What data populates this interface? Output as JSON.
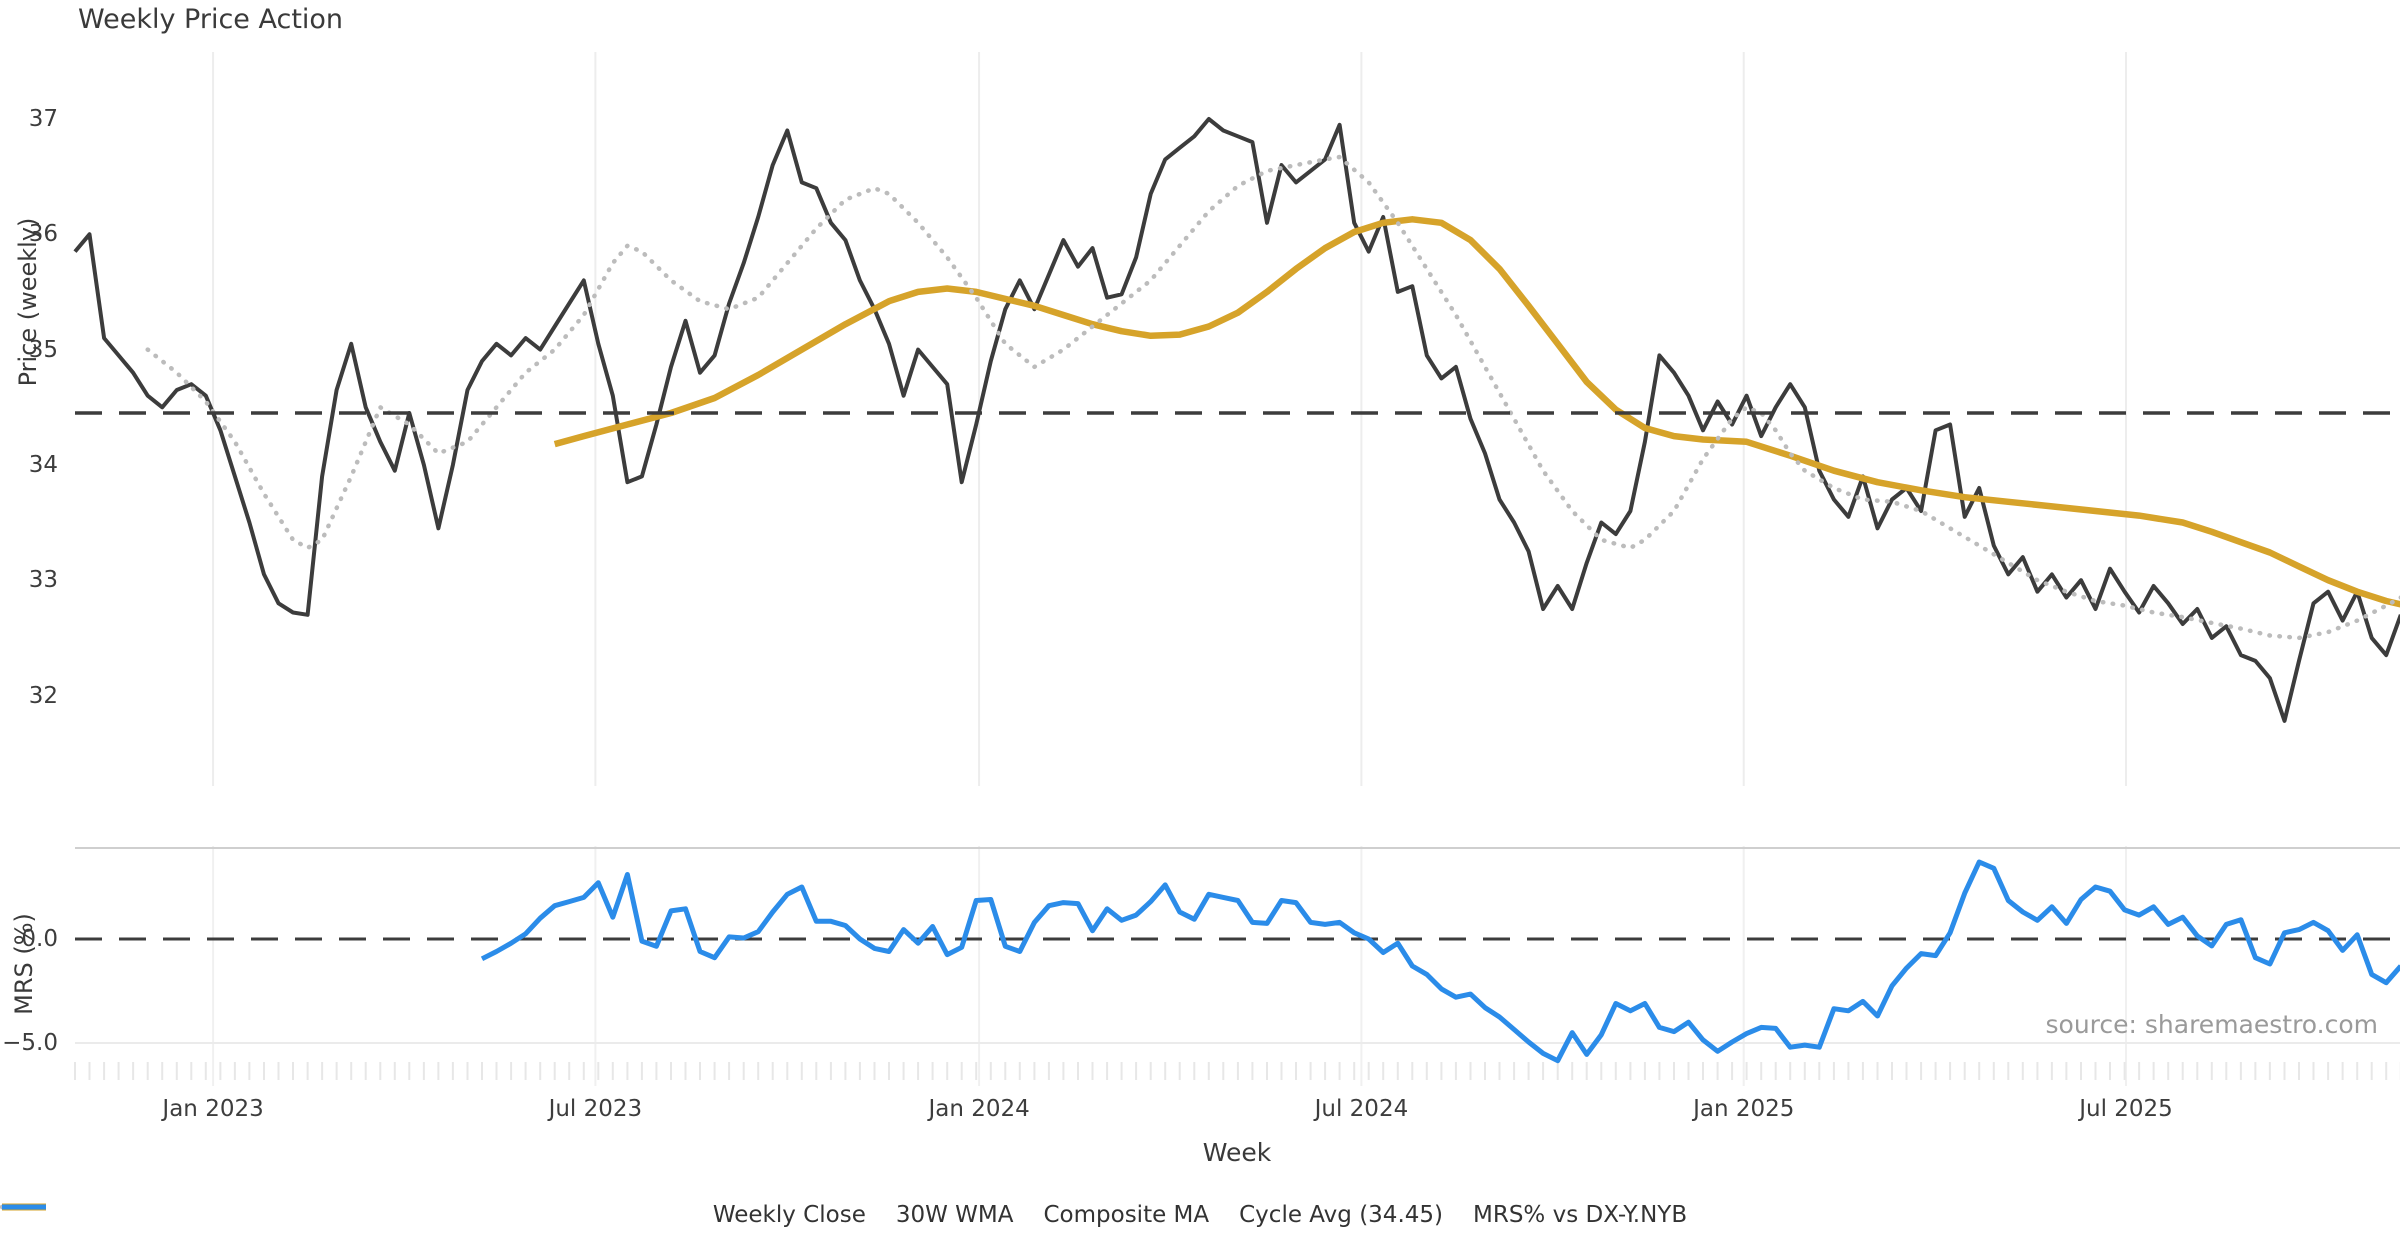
{
  "title": "Weekly Price Action",
  "source": "source: sharemaestro.com",
  "chart_data": {
    "type": "line",
    "xlabel": "Week",
    "x_ticks": [
      {
        "week": 9.5,
        "label": "Jan 2023"
      },
      {
        "week": 35.8,
        "label": "Jul 2023"
      },
      {
        "week": 62.2,
        "label": "Jan 2024"
      },
      {
        "week": 88.5,
        "label": "Jul 2024"
      },
      {
        "week": 114.8,
        "label": "Jan 2025"
      },
      {
        "week": 141.1,
        "label": "Jul 2025"
      }
    ],
    "panels": [
      {
        "name": "price",
        "ylabel": "Price (weekly)",
        "ylim": [
          31.5,
          37.35
        ],
        "yticks": [
          {
            "v": 37,
            "label": "37"
          },
          {
            "v": 36,
            "label": "36"
          },
          {
            "v": 35,
            "label": "35"
          },
          {
            "v": 34,
            "label": "34"
          },
          {
            "v": 33,
            "label": "33"
          },
          {
            "v": 32,
            "label": "32"
          }
        ],
        "cycle_avg": 34.45,
        "series": [
          {
            "name": "Weekly Close",
            "color": "#3c3c3c",
            "style": "solid",
            "width": 4,
            "start_week": 0,
            "values": [
              35.85,
              36.0,
              35.1,
              34.95,
              34.8,
              34.6,
              34.5,
              34.65,
              34.7,
              34.6,
              34.3,
              33.9,
              33.5,
              33.05,
              32.8,
              32.72,
              32.7,
              33.9,
              34.65,
              35.05,
              34.5,
              34.2,
              33.95,
              34.45,
              34.0,
              33.45,
              34.0,
              34.65,
              34.9,
              35.05,
              34.95,
              35.1,
              35.0,
              35.2,
              35.4,
              35.6,
              35.05,
              34.6,
              33.85,
              33.9,
              34.35,
              34.85,
              35.25,
              34.8,
              34.95,
              35.4,
              35.75,
              36.15,
              36.6,
              36.9,
              36.45,
              36.4,
              36.1,
              35.95,
              35.6,
              35.35,
              35.05,
              34.6,
              35.0,
              34.85,
              34.7,
              33.85,
              34.35,
              34.9,
              35.35,
              35.6,
              35.35,
              35.65,
              35.95,
              35.72,
              35.88,
              35.45,
              35.48,
              35.8,
              36.35,
              36.65,
              36.75,
              36.85,
              37.0,
              36.9,
              36.85,
              36.8,
              36.1,
              36.6,
              36.45,
              36.55,
              36.65,
              36.95,
              36.1,
              35.85,
              36.15,
              35.5,
              35.55,
              34.95,
              34.75,
              34.85,
              34.4,
              34.1,
              33.7,
              33.5,
              33.25,
              32.75,
              32.95,
              32.75,
              33.15,
              33.5,
              33.4,
              33.6,
              34.2,
              34.95,
              34.8,
              34.6,
              34.3,
              34.55,
              34.35,
              34.6,
              34.25,
              34.5,
              34.7,
              34.5,
              33.95,
              33.7,
              33.55,
              33.9,
              33.45,
              33.7,
              33.8,
              33.6,
              34.3,
              34.35,
              33.55,
              33.8,
              33.3,
              33.05,
              33.2,
              32.9,
              33.05,
              32.85,
              33.0,
              32.75,
              33.1,
              32.9,
              32.72,
              32.95,
              32.8,
              32.62,
              32.75,
              32.5,
              32.6,
              32.35,
              32.3,
              32.15,
              31.78,
              32.3,
              32.8,
              32.9,
              32.65,
              32.9,
              32.5,
              32.35,
              32.7
            ]
          },
          {
            "name": "30W WMA",
            "color": "#d6a32a",
            "style": "solid",
            "width": 6.5,
            "points": [
              [
                33,
                34.18
              ],
              [
                35,
                34.25
              ],
              [
                38,
                34.35
              ],
              [
                41,
                34.45
              ],
              [
                44,
                34.58
              ],
              [
                47,
                34.78
              ],
              [
                50,
                35.0
              ],
              [
                53,
                35.22
              ],
              [
                56,
                35.42
              ],
              [
                58,
                35.5
              ],
              [
                60,
                35.53
              ],
              [
                62,
                35.5
              ],
              [
                64,
                35.44
              ],
              [
                66,
                35.38
              ],
              [
                68,
                35.3
              ],
              [
                70,
                35.22
              ],
              [
                72,
                35.16
              ],
              [
                74,
                35.12
              ],
              [
                76,
                35.13
              ],
              [
                78,
                35.2
              ],
              [
                80,
                35.32
              ],
              [
                82,
                35.5
              ],
              [
                84,
                35.7
              ],
              [
                86,
                35.88
              ],
              [
                88,
                36.02
              ],
              [
                90,
                36.1
              ],
              [
                92,
                36.13
              ],
              [
                94,
                36.1
              ],
              [
                96,
                35.95
              ],
              [
                98,
                35.7
              ],
              [
                100,
                35.38
              ],
              [
                102,
                35.05
              ],
              [
                104,
                34.72
              ],
              [
                106,
                34.48
              ],
              [
                108,
                34.32
              ],
              [
                110,
                34.25
              ],
              [
                112,
                34.22
              ],
              [
                115,
                34.2
              ],
              [
                118,
                34.08
              ],
              [
                121,
                33.95
              ],
              [
                124,
                33.85
              ],
              [
                127,
                33.78
              ],
              [
                130,
                33.72
              ],
              [
                133,
                33.68
              ],
              [
                136,
                33.64
              ],
              [
                139,
                33.6
              ],
              [
                142,
                33.56
              ],
              [
                145,
                33.5
              ],
              [
                147,
                33.42
              ],
              [
                149,
                33.33
              ],
              [
                151,
                33.24
              ],
              [
                153,
                33.12
              ],
              [
                155,
                33.0
              ],
              [
                157,
                32.9
              ],
              [
                159,
                32.82
              ],
              [
                160,
                32.79
              ]
            ]
          },
          {
            "name": "Composite MA",
            "color": "#bcbcbc",
            "style": "dotted",
            "width": 4.5,
            "points": [
              [
                5,
                35.0
              ],
              [
                7,
                34.8
              ],
              [
                9,
                34.55
              ],
              [
                11,
                34.2
              ],
              [
                13,
                33.75
              ],
              [
                15,
                33.35
              ],
              [
                16,
                33.28
              ],
              [
                17,
                33.35
              ],
              [
                19,
                33.9
              ],
              [
                21,
                34.5
              ],
              [
                23,
                34.35
              ],
              [
                25,
                34.1
              ],
              [
                27,
                34.2
              ],
              [
                29,
                34.5
              ],
              [
                31,
                34.8
              ],
              [
                33,
                35.0
              ],
              [
                35,
                35.3
              ],
              [
                37,
                35.75
              ],
              [
                38,
                35.9
              ],
              [
                39,
                35.85
              ],
              [
                41,
                35.6
              ],
              [
                43,
                35.42
              ],
              [
                45,
                35.35
              ],
              [
                47,
                35.45
              ],
              [
                49,
                35.75
              ],
              [
                51,
                36.05
              ],
              [
                53,
                36.3
              ],
              [
                55,
                36.4
              ],
              [
                56,
                36.35
              ],
              [
                58,
                36.1
              ],
              [
                60,
                35.8
              ],
              [
                62,
                35.45
              ],
              [
                64,
                35.05
              ],
              [
                66,
                34.85
              ],
              [
                68,
                35.0
              ],
              [
                70,
                35.2
              ],
              [
                72,
                35.4
              ],
              [
                74,
                35.6
              ],
              [
                76,
                35.9
              ],
              [
                78,
                36.2
              ],
              [
                80,
                36.42
              ],
              [
                82,
                36.55
              ],
              [
                84,
                36.6
              ],
              [
                86,
                36.65
              ],
              [
                87,
                36.67
              ],
              [
                89,
                36.45
              ],
              [
                91,
                36.1
              ],
              [
                93,
                35.7
              ],
              [
                95,
                35.3
              ],
              [
                97,
                34.85
              ],
              [
                99,
                34.4
              ],
              [
                101,
                33.95
              ],
              [
                103,
                33.6
              ],
              [
                105,
                33.35
              ],
              [
                107,
                33.28
              ],
              [
                108,
                33.35
              ],
              [
                110,
                33.6
              ],
              [
                112,
                34.05
              ],
              [
                114,
                34.4
              ],
              [
                115,
                34.5
              ],
              [
                116,
                34.45
              ],
              [
                117,
                34.3
              ],
              [
                118,
                34.1
              ],
              [
                119,
                33.95
              ],
              [
                121,
                33.8
              ],
              [
                123,
                33.7
              ],
              [
                125,
                33.68
              ],
              [
                127,
                33.6
              ],
              [
                129,
                33.45
              ],
              [
                131,
                33.3
              ],
              [
                133,
                33.15
              ],
              [
                135,
                33.0
              ],
              [
                137,
                32.9
              ],
              [
                139,
                32.82
              ],
              [
                141,
                32.78
              ],
              [
                143,
                32.72
              ],
              [
                145,
                32.68
              ],
              [
                147,
                32.63
              ],
              [
                149,
                32.58
              ],
              [
                151,
                32.52
              ],
              [
                153,
                32.5
              ],
              [
                155,
                32.55
              ],
              [
                157,
                32.65
              ],
              [
                159,
                32.78
              ],
              [
                160,
                32.85
              ]
            ]
          },
          {
            "name": "Cycle Avg (34.45)",
            "color": "#3c3c3c",
            "style": "dashed",
            "width": 3.5,
            "value": 34.45
          }
        ]
      },
      {
        "name": "mrs",
        "ylabel": "MRS (%)",
        "ylim": [
          -6.8,
          4.3
        ],
        "yticks": [
          {
            "v": 0,
            "label": "0.0"
          },
          {
            "v": -5,
            "label": "−5.0"
          }
        ],
        "zero_line": 0,
        "series": [
          {
            "name": "MRS% vs DX-Y.NYB",
            "color": "#2b8ce9",
            "style": "solid",
            "width": 5,
            "start_week": 28,
            "values": [
              -0.95,
              -0.6,
              -0.2,
              0.25,
              1.0,
              1.6,
              1.8,
              2.0,
              2.7,
              1.05,
              3.1,
              -0.1,
              -0.35,
              1.35,
              1.45,
              -0.6,
              -0.9,
              0.1,
              0.05,
              0.35,
              1.3,
              2.15,
              2.5,
              0.85,
              0.85,
              0.65,
              0.0,
              -0.45,
              -0.6,
              0.45,
              -0.2,
              0.6,
              -0.75,
              -0.4,
              1.85,
              1.9,
              -0.35,
              -0.6,
              0.8,
              1.6,
              1.75,
              1.7,
              0.4,
              1.45,
              0.9,
              1.15,
              1.8,
              2.6,
              1.3,
              0.95,
              2.15,
              2.0,
              1.85,
              0.8,
              0.75,
              1.85,
              1.75,
              0.8,
              0.7,
              0.8,
              0.3,
              0.0,
              -0.65,
              -0.2,
              -1.3,
              -1.7,
              -2.4,
              -2.8,
              -2.65,
              -3.3,
              -3.75,
              -4.35,
              -4.95,
              -5.5,
              -5.85,
              -4.5,
              -5.55,
              -4.6,
              -3.1,
              -3.45,
              -3.1,
              -4.25,
              -4.45,
              -4.0,
              -4.85,
              -5.4,
              -4.95,
              -4.55,
              -4.25,
              -4.3,
              -5.2,
              -5.1,
              -5.2,
              -3.35,
              -3.45,
              -3.0,
              -3.7,
              -2.25,
              -1.4,
              -0.7,
              -0.8,
              0.3,
              2.2,
              3.7,
              3.4,
              1.85,
              1.3,
              0.9,
              1.55,
              0.75,
              1.9,
              2.5,
              2.3,
              1.4,
              1.15,
              1.55,
              0.7,
              1.05,
              0.15,
              -0.33,
              0.7,
              0.93,
              -0.9,
              -1.2,
              0.3,
              0.45,
              0.8,
              0.4,
              -0.55,
              0.2,
              -1.7,
              -2.1,
              -1.3
            ]
          }
        ]
      }
    ],
    "legend": [
      {
        "label": "Weekly Close",
        "style": "solid",
        "color": "#3c3c3c",
        "width": 5
      },
      {
        "label": "30W WMA",
        "style": "solid",
        "color": "#d6a32a",
        "width": 7
      },
      {
        "label": "Composite MA",
        "style": "dotted",
        "color": "#bcbcbc",
        "width": 4.5
      },
      {
        "label": "Cycle Avg (34.45)",
        "style": "dashed",
        "color": "#3c3c3c",
        "width": 4
      },
      {
        "label": "MRS% vs DX-Y.NYB",
        "style": "solid",
        "color": "#2b8ce9",
        "width": 5
      }
    ]
  }
}
